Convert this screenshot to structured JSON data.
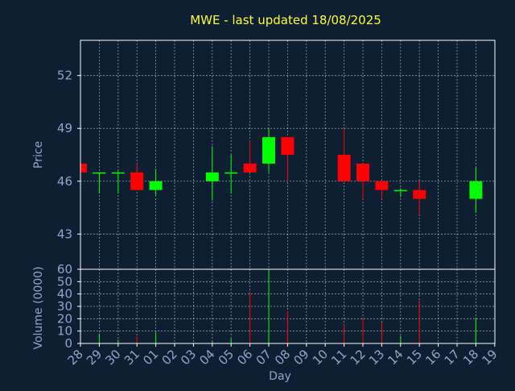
{
  "chart_data": {
    "type": "candlestick",
    "title": "MWE - last updated 18/08/2025",
    "xlabel": "Day",
    "colors": {
      "background": "#0f1f33",
      "up": "#00ff00",
      "down": "#ff0000",
      "title": "#ffff33",
      "axis_text": "#8fa6c7",
      "grid": "#ffffff"
    },
    "x_ticks": [
      "28",
      "29",
      "30",
      "31",
      "01",
      "02",
      "03",
      "04",
      "05",
      "06",
      "07",
      "08",
      "09",
      "10",
      "11",
      "12",
      "13",
      "14",
      "15",
      "16",
      "17",
      "18",
      "19"
    ],
    "price_panel": {
      "ylabel": "Price",
      "ylim": [
        41,
        54
      ],
      "y_ticks": [
        43,
        46,
        49,
        52
      ],
      "candles": [
        {
          "day": "28",
          "open": 47.0,
          "high": 47.0,
          "low": 46.5,
          "close": 46.5
        },
        {
          "day": "29",
          "open": 46.45,
          "high": 46.5,
          "low": 45.3,
          "close": 46.5
        },
        {
          "day": "30",
          "open": 46.45,
          "high": 46.6,
          "low": 45.3,
          "close": 46.5
        },
        {
          "day": "31",
          "open": 46.5,
          "high": 47.0,
          "low": 45.5,
          "close": 45.5
        },
        {
          "day": "01",
          "open": 45.5,
          "high": 46.7,
          "low": 45.2,
          "close": 46.0
        },
        {
          "day": "04",
          "open": 46.0,
          "high": 48.0,
          "low": 44.9,
          "close": 46.5
        },
        {
          "day": "05",
          "open": 46.45,
          "high": 47.5,
          "low": 45.3,
          "close": 46.5
        },
        {
          "day": "06",
          "open": 47.0,
          "high": 48.3,
          "low": 46.5,
          "close": 46.5
        },
        {
          "day": "07",
          "open": 47.0,
          "high": 49.0,
          "low": 46.5,
          "close": 48.5
        },
        {
          "day": "08",
          "open": 48.5,
          "high": 48.5,
          "low": 46.0,
          "close": 47.5
        },
        {
          "day": "11",
          "open": 47.5,
          "high": 49.0,
          "low": 46.0,
          "close": 46.0
        },
        {
          "day": "12",
          "open": 47.0,
          "high": 47.0,
          "low": 45.0,
          "close": 46.0
        },
        {
          "day": "13",
          "open": 46.0,
          "high": 46.0,
          "low": 45.0,
          "close": 45.5
        },
        {
          "day": "14",
          "open": 45.45,
          "high": 45.6,
          "low": 45.1,
          "close": 45.5
        },
        {
          "day": "15",
          "open": 45.5,
          "high": 46.0,
          "low": 44.1,
          "close": 45.0
        },
        {
          "day": "18",
          "open": 45.0,
          "high": 46.8,
          "low": 44.2,
          "close": 46.0
        }
      ]
    },
    "volume_panel": {
      "ylabel": "Volume (0000)",
      "ylim": [
        0,
        60
      ],
      "y_ticks": [
        0,
        10,
        20,
        30,
        40,
        50,
        60
      ],
      "bars": [
        {
          "day": "28",
          "value": 0,
          "direction": "down"
        },
        {
          "day": "29",
          "value": 8,
          "direction": "up"
        },
        {
          "day": "30",
          "value": 3,
          "direction": "up"
        },
        {
          "day": "31",
          "value": 6,
          "direction": "down"
        },
        {
          "day": "01",
          "value": 9,
          "direction": "up"
        },
        {
          "day": "04",
          "value": 2,
          "direction": "up"
        },
        {
          "day": "05",
          "value": 4,
          "direction": "up"
        },
        {
          "day": "06",
          "value": 41,
          "direction": "down"
        },
        {
          "day": "07",
          "value": 60,
          "direction": "up"
        },
        {
          "day": "08",
          "value": 26,
          "direction": "down"
        },
        {
          "day": "11",
          "value": 15,
          "direction": "down"
        },
        {
          "day": "12",
          "value": 21,
          "direction": "down"
        },
        {
          "day": "13",
          "value": 17,
          "direction": "down"
        },
        {
          "day": "14",
          "value": 6,
          "direction": "up"
        },
        {
          "day": "15",
          "value": 35,
          "direction": "down"
        },
        {
          "day": "18",
          "value": 21,
          "direction": "up"
        }
      ]
    }
  }
}
